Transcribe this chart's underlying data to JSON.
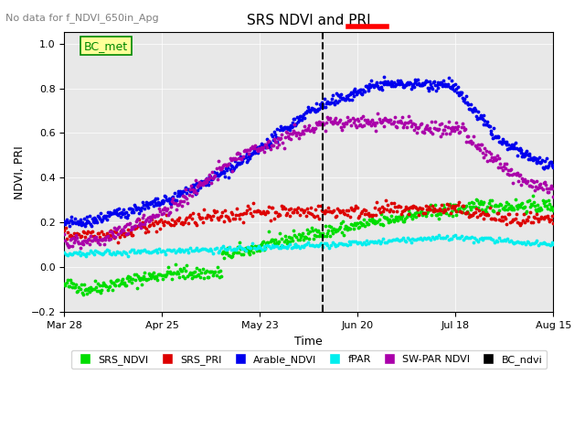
{
  "title": "SRS NDVI and PRI",
  "suptitle": "No data for f_NDVI_650in_Apg",
  "ylabel": "NDVI, PRI",
  "xlabel": "Time",
  "ylim": [
    -0.2,
    1.05
  ],
  "xlim_days": [
    0,
    140
  ],
  "bg_color": "#e8e8e8",
  "fig_color": "#ffffff",
  "legend_labels": [
    "SRS_NDVI",
    "SRS_PRI",
    "Arable_NDVI",
    "fPAR",
    "SW-PAR NDVI",
    "BC_ndvi"
  ],
  "legend_colors": [
    "#00ff00",
    "#ff0000",
    "#0000ff",
    "#00ffff",
    "#aa00aa",
    "#000000"
  ],
  "bc_met_box_color": "#ffff99",
  "bc_met_text_color": "#008800",
  "x_ticks_labels": [
    "Mar 28",
    "Apr 25",
    "May 23",
    "Jun 20",
    "Jul 18",
    "Aug 15"
  ],
  "x_ticks_pos": [
    0,
    28,
    56,
    84,
    112,
    140
  ]
}
